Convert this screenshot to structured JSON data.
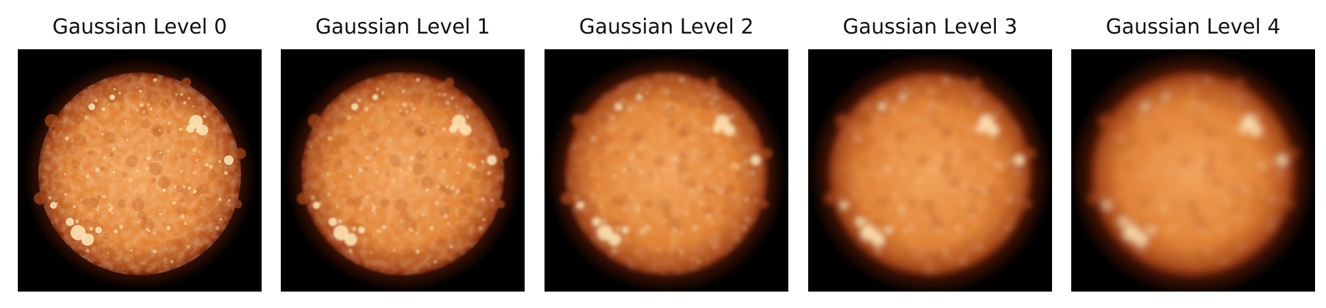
{
  "figure": {
    "panels": [
      {
        "title": "Gaussian Level 0",
        "blur": 0
      },
      {
        "title": "Gaussian Level 1",
        "blur": 1
      },
      {
        "title": "Gaussian Level 2",
        "blur": 2
      },
      {
        "title": "Gaussian Level 3",
        "blur": 3
      },
      {
        "title": "Gaussian Level 4",
        "blur": 4
      }
    ],
    "colors": {
      "background": "#000000",
      "sun_core": "#f2a25a",
      "sun_mid": "#e08236",
      "sun_edge": "#a84a1c",
      "corona": "#6a1e08",
      "bright_region": "#ffe8b8"
    }
  }
}
